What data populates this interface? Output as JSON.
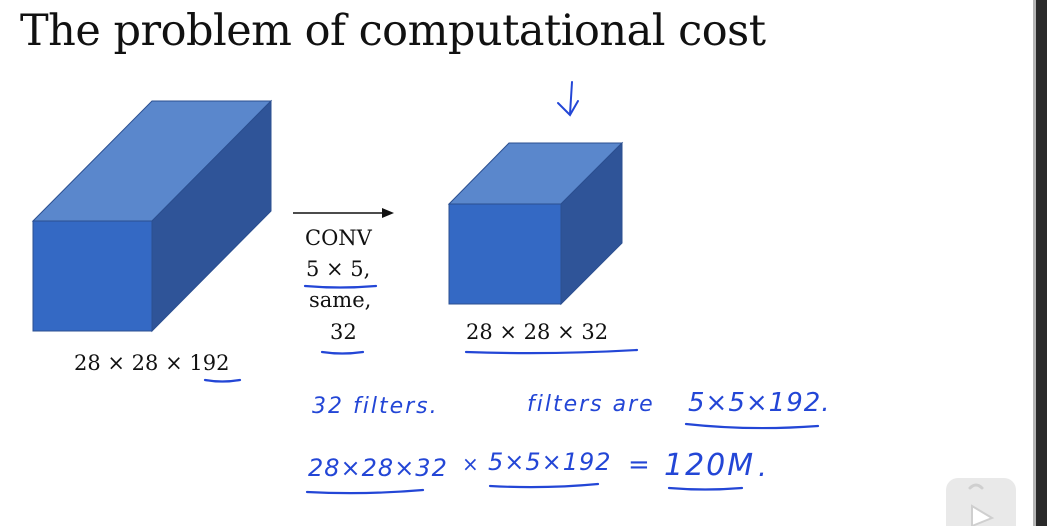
{
  "title": "The problem of computational cost",
  "input_volume": {
    "label_prefix": "28 × 28 × ",
    "label_underlined": "192"
  },
  "conv": {
    "line1": "CONV",
    "line2": "5 × 5,",
    "line3": "same,",
    "line4": "32"
  },
  "output_volume": {
    "label": "28 × 28 × 32"
  },
  "annotations": {
    "filters_count": "32 filters.",
    "filters_are": "filters are",
    "filter_size": "5×5×192.",
    "mult_a": "28×28×32",
    "mult_sign": "×",
    "mult_b": "5×5×192",
    "equals": "=",
    "result": "120M",
    "result_dot": "."
  },
  "colors": {
    "cube_front": "#3469c4",
    "cube_top": "#5a87cc",
    "cube_side": "#2f5498",
    "ink": "#2346d6"
  }
}
